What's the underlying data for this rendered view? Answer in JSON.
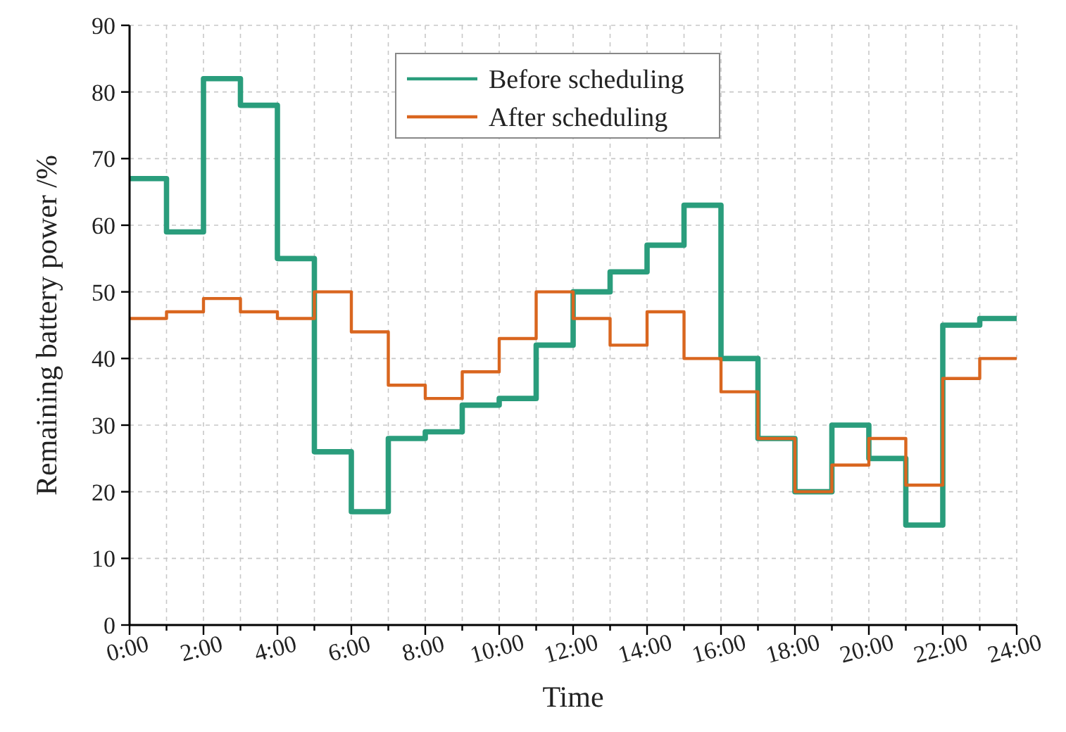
{
  "chart_data": {
    "type": "step",
    "xlabel": "Time",
    "ylabel": "Remaining battery power /%",
    "x": [
      0,
      1,
      2,
      3,
      4,
      5,
      6,
      7,
      8,
      9,
      10,
      11,
      12,
      13,
      14,
      15,
      16,
      17,
      18,
      19,
      20,
      21,
      22,
      23,
      24
    ],
    "series": [
      {
        "name": "Before scheduling",
        "color": "#2a9d7c",
        "values": [
          67,
          59,
          82,
          78,
          55,
          26,
          17,
          28,
          29,
          33,
          34,
          42,
          50,
          53,
          57,
          63,
          40,
          28,
          20,
          30,
          25,
          15,
          45,
          46,
          46
        ]
      },
      {
        "name": "After scheduling",
        "color": "#d9661f",
        "values": [
          46,
          47,
          49,
          47,
          46,
          50,
          44,
          36,
          34,
          38,
          43,
          50,
          46,
          42,
          47,
          40,
          35,
          28,
          20,
          24,
          28,
          21,
          37,
          40,
          40
        ]
      }
    ],
    "xlim": [
      0,
      24
    ],
    "xticks": [
      {
        "value": 0,
        "label": "0:00"
      },
      {
        "value": 1,
        "label": null
      },
      {
        "value": 2,
        "label": "2:00"
      },
      {
        "value": 3,
        "label": null
      },
      {
        "value": 4,
        "label": "4:00"
      },
      {
        "value": 5,
        "label": null
      },
      {
        "value": 6,
        "label": "6:00"
      },
      {
        "value": 7,
        "label": null
      },
      {
        "value": 8,
        "label": "8:00"
      },
      {
        "value": 9,
        "label": null
      },
      {
        "value": 10,
        "label": "10:00"
      },
      {
        "value": 11,
        "label": null
      },
      {
        "value": 12,
        "label": "12:00"
      },
      {
        "value": 13,
        "label": null
      },
      {
        "value": 14,
        "label": "14:00"
      },
      {
        "value": 15,
        "label": null
      },
      {
        "value": 16,
        "label": "16:00"
      },
      {
        "value": 17,
        "label": null
      },
      {
        "value": 18,
        "label": "18:00"
      },
      {
        "value": 19,
        "label": null
      },
      {
        "value": 20,
        "label": "20:00"
      },
      {
        "value": 21,
        "label": null
      },
      {
        "value": 22,
        "label": "22:00"
      },
      {
        "value": 23,
        "label": null
      },
      {
        "value": 24,
        "label": "24:00"
      }
    ],
    "ylim": [
      0,
      90
    ],
    "yticks": [
      0,
      10,
      20,
      30,
      40,
      50,
      60,
      70,
      80,
      90
    ],
    "grid": true,
    "legend": "top",
    "line_style": "solid"
  }
}
